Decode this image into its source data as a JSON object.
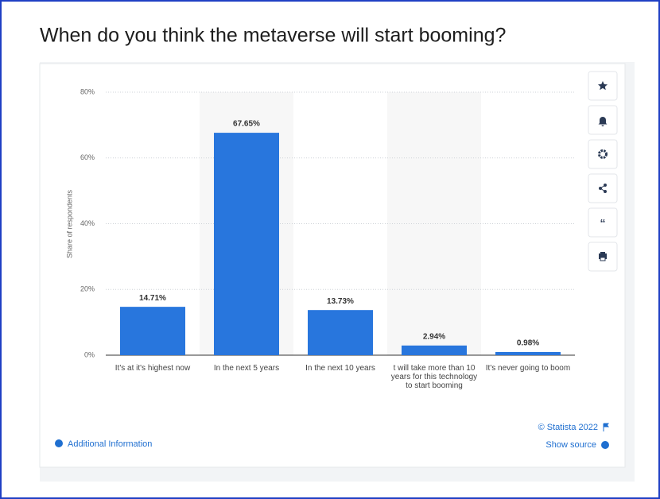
{
  "chart_data": {
    "type": "bar",
    "title": "When do you think the metaverse will start booming?",
    "y_label": "Share of respondents",
    "categories": [
      "It's at it's highest now",
      "In the next 5 years",
      "In the next 10 years",
      "t will take more than 10 years for this technology to start booming",
      "It's never going to boom"
    ],
    "values": [
      14.71,
      67.65,
      13.73,
      2.94,
      0.98
    ],
    "value_labels": [
      "14.71%",
      "67.65%",
      "13.73%",
      "2.94%",
      "0.98%"
    ],
    "color": "#2876dd",
    "ylim": [
      0,
      80
    ],
    "yticks": [
      {
        "value": 0,
        "label": "0%"
      },
      {
        "value": 20,
        "label": "20%"
      },
      {
        "value": 40,
        "label": "40%"
      },
      {
        "value": 60,
        "label": "60%"
      },
      {
        "value": 80,
        "label": "80%"
      }
    ],
    "grid": true
  },
  "footer": {
    "copyright": "© Statista 2022",
    "additional_info": "Additional Information",
    "show_source": "Show source"
  }
}
